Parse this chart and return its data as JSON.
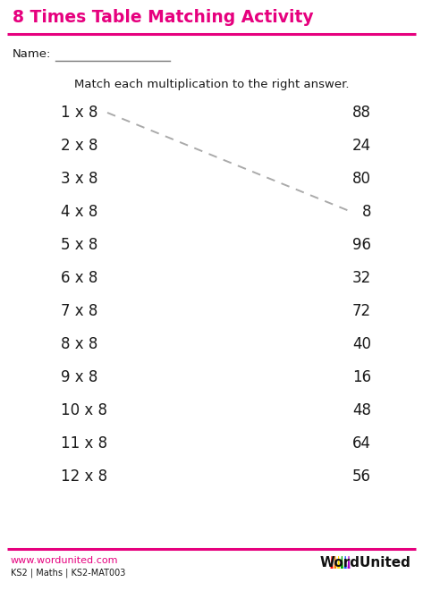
{
  "title": "8 Times Table Matching Activity",
  "title_color": "#e6007e",
  "title_fontsize": 13.5,
  "subtitle": "Match each multiplication to the right answer.",
  "subtitle_fontsize": 9.5,
  "name_label": "Name:",
  "left_items": [
    "1 x 8",
    "2 x 8",
    "3 x 8",
    "4 x 8",
    "5 x 8",
    "6 x 8",
    "7 x 8",
    "8 x 8",
    "9 x 8",
    "10 x 8",
    "11 x 8",
    "12 x 8"
  ],
  "right_items": [
    "88",
    "24",
    "80",
    "8",
    "96",
    "32",
    "72",
    "40",
    "16",
    "48",
    "64",
    "56"
  ],
  "dashed_line": {
    "from_row": 0,
    "to_row": 3
  },
  "pink_color": "#e6007e",
  "text_color": "#1a1a1a",
  "footer_url": "www.wordunited.com",
  "footer_info": "KS2 | Maths | KS2-MAT003",
  "footer_brand": "WordUnited",
  "background_color": "#ffffff",
  "item_fontsize": 12,
  "footer_fontsize": 7,
  "footer_url_color": "#e6007e",
  "logo_colors": [
    "#ff0000",
    "#ff8800",
    "#ffdd00",
    "#00aa00",
    "#0055ff",
    "#aa00cc"
  ]
}
